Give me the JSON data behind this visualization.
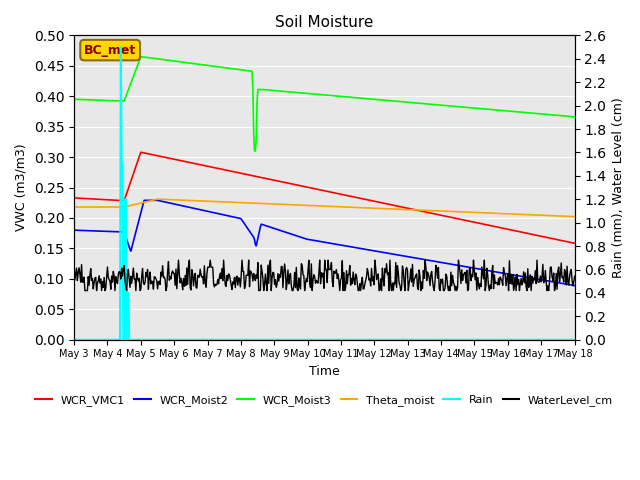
{
  "title": "Soil Moisture",
  "xlabel": "Time",
  "ylabel_left": "VWC (m3/m3)",
  "ylabel_right": "Rain (mm), Water Level (cm)",
  "ylim_left": [
    0.0,
    0.5
  ],
  "ylim_right": [
    0.0,
    2.6
  ],
  "background_color": "#e8e8e8",
  "annotation_text": "BC_met",
  "annotation_box_color": "#ffd700",
  "annotation_text_color": "#8b0000",
  "legend_entries": [
    "WCR_VMC1",
    "WCR_Moist2",
    "WCR_Moist3",
    "Theta_moist",
    "Rain",
    "WaterLevel_cm"
  ],
  "legend_colors": [
    "red",
    "blue",
    "lime",
    "orange",
    "cyan",
    "#000000"
  ]
}
